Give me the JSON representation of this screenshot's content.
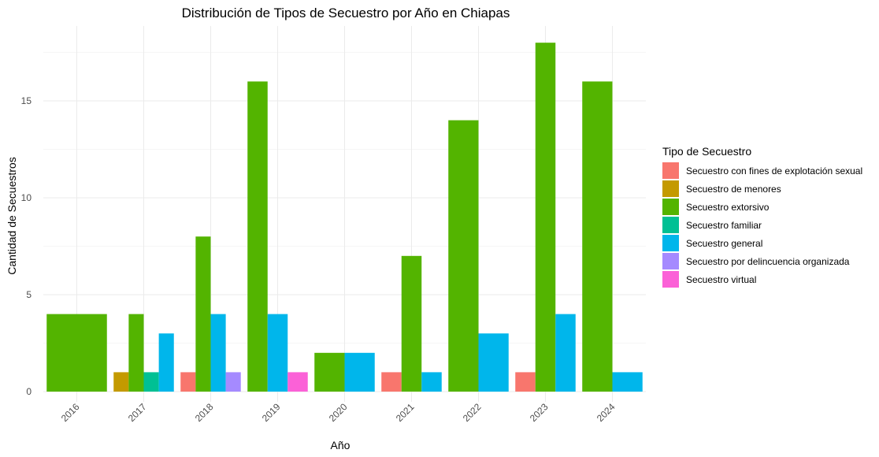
{
  "chart_data": {
    "type": "bar",
    "title": "Distribución de Tipos de Secuestro por Año en Chiapas",
    "xlabel": "Año",
    "ylabel": "Cantidad de Secuestros",
    "ylim": [
      0,
      19
    ],
    "yticks": [
      0,
      5,
      10,
      15
    ],
    "grid": true,
    "legend_position": "right",
    "legend_title": "Tipo de Secuestro",
    "categories": [
      "2016",
      "2017",
      "2018",
      "2019",
      "2020",
      "2021",
      "2022",
      "2023",
      "2024"
    ],
    "series": [
      {
        "name": "Secuestro con fines de explotación sexual",
        "color": "#F8766D",
        "values": [
          null,
          null,
          1,
          null,
          null,
          1,
          null,
          1,
          null
        ]
      },
      {
        "name": "Secuestro de menores",
        "color": "#C49A00",
        "values": [
          null,
          1,
          null,
          null,
          null,
          null,
          null,
          null,
          null
        ]
      },
      {
        "name": "Secuestro extorsivo",
        "color": "#53B400",
        "values": [
          4,
          4,
          8,
          16,
          2,
          7,
          14,
          18,
          16
        ]
      },
      {
        "name": "Secuestro familiar",
        "color": "#00C094",
        "values": [
          null,
          1,
          null,
          null,
          null,
          null,
          null,
          null,
          null
        ]
      },
      {
        "name": "Secuestro general",
        "color": "#00B6EB",
        "values": [
          null,
          3,
          4,
          4,
          2,
          1,
          3,
          4,
          1
        ]
      },
      {
        "name": "Secuestro por delincuencia organizada",
        "color": "#A58AFF",
        "values": [
          null,
          null,
          1,
          null,
          null,
          null,
          null,
          null,
          null
        ]
      },
      {
        "name": "Secuestro virtual",
        "color": "#FB61D7",
        "values": [
          null,
          null,
          null,
          1,
          null,
          null,
          null,
          null,
          null
        ]
      }
    ]
  }
}
